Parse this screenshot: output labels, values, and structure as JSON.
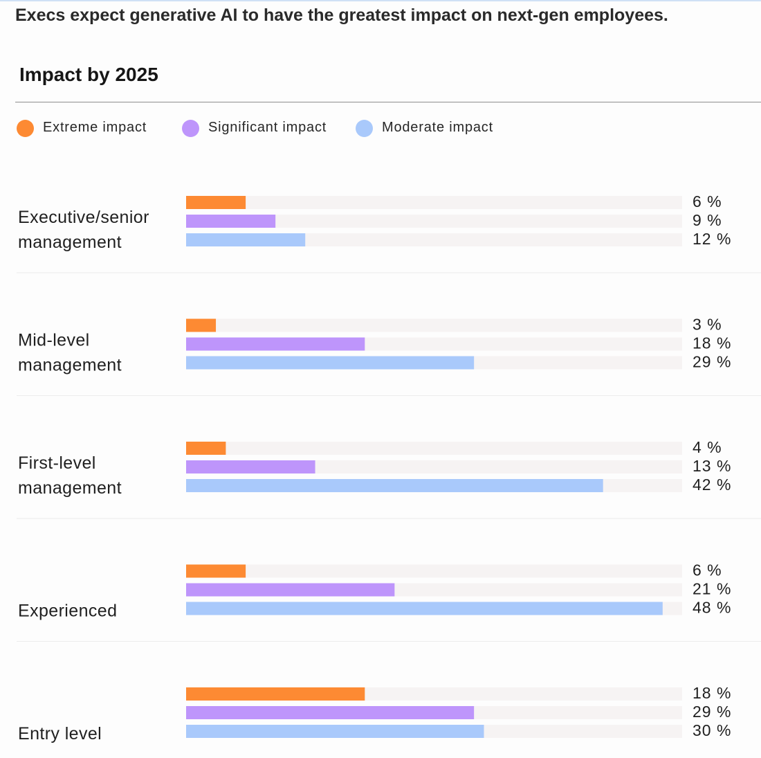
{
  "headline": "Execs expect generative AI to have the greatest impact on next-gen employees.",
  "colors": {
    "extreme": "#fd8a33",
    "significant": "#be95fb",
    "moderate": "#a9c9fb",
    "track": "#f6f3f3",
    "divider": "#ececec"
  },
  "legend": [
    {
      "label": "Extreme impact",
      "color": "#fd8a33"
    },
    {
      "label": "Significant impact",
      "color": "#be95fb"
    },
    {
      "label": "Moderate impact",
      "color": "#a9c9fb"
    }
  ],
  "chart_data": {
    "type": "bar",
    "orientation": "horizontal",
    "title": "Impact by 2025",
    "value_suffix": " %",
    "xlim": [
      0,
      100
    ],
    "grid": false,
    "legend_position": "top-left",
    "categories": [
      [
        "Executive/senior",
        "management"
      ],
      [
        "Mid-level",
        "management"
      ],
      [
        "First-level",
        "management"
      ],
      [
        "Experienced"
      ],
      [
        "Entry level"
      ]
    ],
    "series": [
      {
        "name": "Extreme impact",
        "color": "#fd8a33",
        "values": [
          6,
          3,
          4,
          6,
          18
        ]
      },
      {
        "name": "Significant impact",
        "color": "#be95fb",
        "values": [
          9,
          18,
          13,
          21,
          29
        ]
      },
      {
        "name": "Moderate impact",
        "color": "#a9c9fb",
        "values": [
          12,
          29,
          42,
          48,
          30
        ]
      }
    ]
  }
}
